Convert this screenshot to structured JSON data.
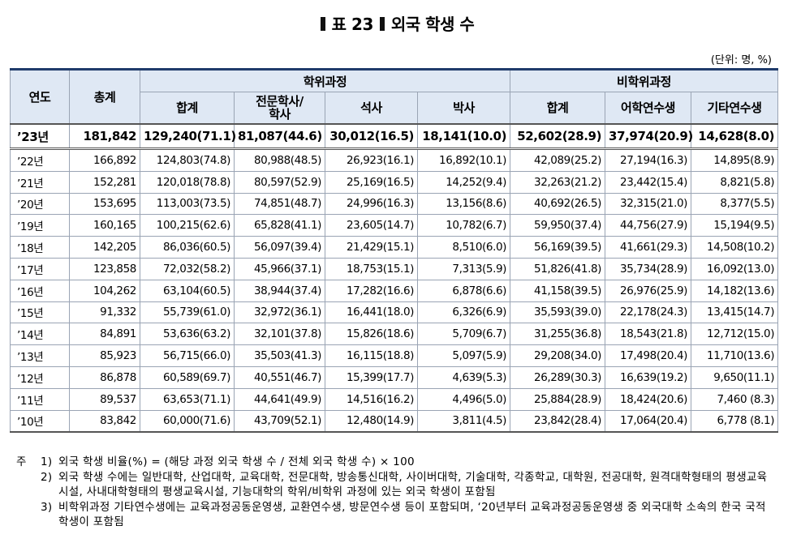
{
  "title": {
    "number": "표 23",
    "text": "외국 학생 수"
  },
  "unit": "(단위: 명, %)",
  "table": {
    "header_top": [
      "연도",
      "총계",
      "학위과정",
      "비학위과정"
    ],
    "header_sub": [
      "합계",
      "전문학사/학사",
      "석사",
      "박사",
      "합계",
      "어학연수생",
      "기타연수생"
    ],
    "rows": [
      [
        "’23년",
        "181,842",
        "129,240(71.1)",
        "81,087(44.6)",
        "30,012(16.5)",
        "18,141(10.0)",
        "52,602(28.9)",
        "37,974(20.9)",
        "14,628(8.0)"
      ],
      [
        "’22년",
        "166,892",
        "124,803(74.8)",
        "80,988(48.5)",
        "26,923(16.1)",
        "16,892(10.1)",
        "42,089(25.2)",
        "27,194(16.3)",
        "14,895(8.9)"
      ],
      [
        "’21년",
        "152,281",
        "120,018(78.8)",
        "80,597(52.9)",
        "25,169(16.5)",
        "14,252(9.4)",
        "32,263(21.2)",
        "23,442(15.4)",
        "8,821(5.8)"
      ],
      [
        "’20년",
        "153,695",
        "113,003(73.5)",
        "74,851(48.7)",
        "24,996(16.3)",
        "13,156(8.6)",
        "40,692(26.5)",
        "32,315(21.0)",
        "8,377(5.5)"
      ],
      [
        "’19년",
        "160,165",
        "100,215(62.6)",
        "65,828(41.1)",
        "23,605(14.7)",
        "10,782(6.7)",
        "59,950(37.4)",
        "44,756(27.9)",
        "15,194(9.5)"
      ],
      [
        "’18년",
        "142,205",
        "86,036(60.5)",
        "56,097(39.4)",
        "21,429(15.1)",
        "8,510(6.0)",
        "56,169(39.5)",
        "41,661(29.3)",
        "14,508(10.2)"
      ],
      [
        "’17년",
        "123,858",
        "72,032(58.2)",
        "45,966(37.1)",
        "18,753(15.1)",
        "7,313(5.9)",
        "51,826(41.8)",
        "35,734(28.9)",
        "16,092(13.0)"
      ],
      [
        "’16년",
        "104,262",
        "63,104(60.5)",
        "38,944(37.4)",
        "17,282(16.6)",
        "6,878(6.6)",
        "41,158(39.5)",
        "26,976(25.9)",
        "14,182(13.6)"
      ],
      [
        "’15년",
        "91,332",
        "55,739(61.0)",
        "32,972(36.1)",
        "16,441(18.0)",
        "6,326(6.9)",
        "35,593(39.0)",
        "22,178(24.3)",
        "13,415(14.7)"
      ],
      [
        "’14년",
        "84,891",
        "53,636(63.2)",
        "32,101(37.8)",
        "15,826(18.6)",
        "5,709(6.7)",
        "31,255(36.8)",
        "18,543(21.8)",
        "12,712(15.0)"
      ],
      [
        "’13년",
        "85,923",
        "56,715(66.0)",
        "35,503(41.3)",
        "16,115(18.8)",
        "5,097(5.9)",
        "29,208(34.0)",
        "17,498(20.4)",
        "11,710(13.6)"
      ],
      [
        "’12년",
        "86,878",
        "60,589(69.7)",
        "40,551(46.7)",
        "15,399(17.7)",
        "4,639(5.3)",
        "26,289(30.3)",
        "16,639(19.2)",
        "9,650(11.1)"
      ],
      [
        "’11년",
        "89,537",
        "63,653(71.1)",
        "44,641(49.9)",
        "14,516(16.2)",
        "4,496(5.0)",
        "25,884(28.9)",
        "18,424(20.6)",
        "7,460 (8.3)"
      ],
      [
        "’10년",
        "83,842",
        "60,000(71.6)",
        "43,709(52.1)",
        "12,480(14.9)",
        "3,811(4.5)",
        "23,842(28.4)",
        "17,064(20.4)",
        "6,778 (8.1)"
      ]
    ]
  },
  "notes": {
    "label": "주",
    "items": [
      {
        "num": "1)",
        "text": "외국 학생 비율(%) = (해당 과정 외국 학생 수 / 전체 외국 학생 수) × 100"
      },
      {
        "num": "2)",
        "text": "외국 학생 수에는 일반대학, 산업대학, 교육대학, 전문대학, 방송통신대학, 사이버대학, 기술대학, 각종학교, 대학원, 전공대학, 원격대학형태의 평생교육시설, 사내대학형태의 평생교육시설, 기능대학의 학위/비학위 과정에 있는 외국 학생이 포함됨"
      },
      {
        "num": "3)",
        "text": "비학위과정 기타연수생에는 교육과정공동운영생, 교환연수생, 방문연수생 등이 포함되며, ‘20년부터 교육과정공동운영생 중 외국대학 소속의 한국 국적 학생이 포함됨"
      }
    ]
  }
}
